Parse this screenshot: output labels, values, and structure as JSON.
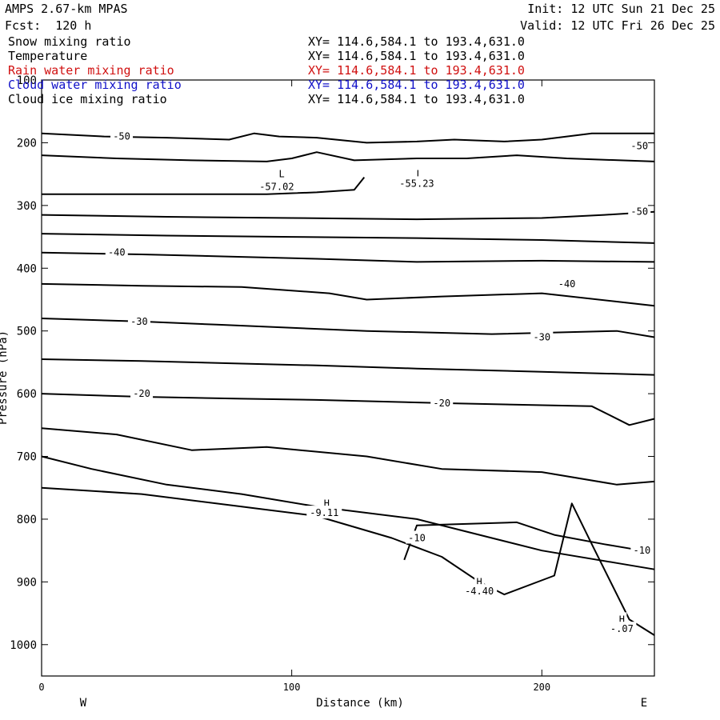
{
  "header": {
    "model": "AMPS 2.67-km MPAS",
    "forecast": "Fcst:  120 h",
    "init": "Init: 12 UTC Sun 21 Dec 25",
    "valid": "Valid: 12 UTC Fri 26 Dec 25"
  },
  "fields": [
    {
      "name": "Snow mixing ratio",
      "xy": "XY= 114.6,584.1 to 193.4,631.0",
      "color": "#000000"
    },
    {
      "name": "Temperature",
      "xy": "XY= 114.6,584.1 to 193.4,631.0",
      "color": "#000000"
    },
    {
      "name": "Rain water mixing ratio",
      "xy": "XY= 114.6,584.1 to 193.4,631.0",
      "color": "#d01010"
    },
    {
      "name": "Cloud water mixing ratio",
      "xy": "XY= 114.6,584.1 to 193.4,631.0",
      "color": "#1010c8"
    },
    {
      "name": "Cloud ice mixing ratio",
      "xy": "XY= 114.6,584.1 to 193.4,631.0",
      "color": "#000000"
    }
  ],
  "chart_data": {
    "type": "line",
    "xlabel": "Distance (km)",
    "ylabel": "Pressure (hPa)",
    "xlim": [
      0,
      245
    ],
    "ylim": [
      100,
      1050
    ],
    "y_inverted": true,
    "x_ticks": [
      0,
      100,
      200
    ],
    "y_ticks": [
      100,
      200,
      300,
      400,
      500,
      600,
      700,
      800,
      900,
      1000
    ],
    "x_ends": {
      "left": "W",
      "right": "E"
    },
    "contour_interval": 5,
    "series": [
      {
        "points": [
          [
            0,
            185
          ],
          [
            25,
            190
          ],
          [
            50,
            192
          ],
          [
            75,
            195
          ],
          [
            85,
            185
          ],
          [
            95,
            190
          ],
          [
            110,
            192
          ],
          [
            130,
            200
          ],
          [
            150,
            198
          ],
          [
            165,
            195
          ],
          [
            185,
            198
          ],
          [
            200,
            195
          ],
          [
            220,
            185
          ],
          [
            245,
            185
          ]
        ]
      },
      {
        "points": [
          [
            0,
            220
          ],
          [
            30,
            225
          ],
          [
            60,
            228
          ],
          [
            90,
            230
          ],
          [
            100,
            225
          ],
          [
            110,
            215
          ],
          [
            125,
            228
          ],
          [
            150,
            225
          ],
          [
            170,
            225
          ],
          [
            190,
            220
          ],
          [
            210,
            225
          ],
          [
            245,
            230
          ]
        ]
      },
      {
        "points": [
          [
            0,
            282
          ],
          [
            30,
            282
          ],
          [
            60,
            282
          ],
          [
            90,
            282
          ],
          [
            110,
            279
          ],
          [
            125,
            275
          ],
          [
            129,
            255
          ]
        ]
      },
      {
        "points": [
          [
            0,
            315
          ],
          [
            50,
            318
          ],
          [
            100,
            320
          ],
          [
            150,
            322
          ],
          [
            200,
            320
          ],
          [
            225,
            315
          ],
          [
            245,
            310
          ]
        ]
      },
      {
        "points": [
          [
            0,
            345
          ],
          [
            50,
            348
          ],
          [
            100,
            350
          ],
          [
            150,
            352
          ],
          [
            200,
            355
          ],
          [
            245,
            360
          ]
        ]
      },
      {
        "points": [
          [
            0,
            375
          ],
          [
            40,
            378
          ],
          [
            80,
            382
          ],
          [
            110,
            385
          ],
          [
            150,
            390
          ],
          [
            200,
            388
          ],
          [
            245,
            390
          ]
        ]
      },
      {
        "points": [
          [
            0,
            425
          ],
          [
            40,
            428
          ],
          [
            80,
            430
          ],
          [
            115,
            440
          ],
          [
            130,
            450
          ],
          [
            160,
            445
          ],
          [
            200,
            440
          ],
          [
            245,
            460
          ]
        ]
      },
      {
        "points": [
          [
            0,
            480
          ],
          [
            40,
            485
          ],
          [
            70,
            490
          ],
          [
            100,
            495
          ],
          [
            130,
            500
          ],
          [
            180,
            505
          ],
          [
            230,
            500
          ],
          [
            245,
            510
          ]
        ]
      },
      {
        "points": [
          [
            0,
            545
          ],
          [
            40,
            548
          ],
          [
            80,
            552
          ],
          [
            110,
            555
          ],
          [
            150,
            560
          ],
          [
            200,
            565
          ],
          [
            245,
            570
          ]
        ]
      },
      {
        "points": [
          [
            0,
            600
          ],
          [
            40,
            605
          ],
          [
            80,
            608
          ],
          [
            110,
            610
          ],
          [
            160,
            615
          ],
          [
            220,
            620
          ],
          [
            235,
            650
          ],
          [
            245,
            640
          ]
        ]
      },
      {
        "points": [
          [
            0,
            655
          ],
          [
            30,
            665
          ],
          [
            60,
            690
          ],
          [
            90,
            685
          ],
          [
            130,
            700
          ],
          [
            160,
            720
          ],
          [
            200,
            725
          ],
          [
            230,
            745
          ],
          [
            245,
            740
          ]
        ]
      },
      {
        "points": [
          [
            0,
            700
          ],
          [
            20,
            720
          ],
          [
            50,
            745
          ],
          [
            80,
            760
          ],
          [
            110,
            780
          ],
          [
            150,
            800
          ],
          [
            180,
            830
          ],
          [
            200,
            850
          ],
          [
            230,
            870
          ],
          [
            245,
            880
          ]
        ]
      },
      {
        "points": [
          [
            0,
            750
          ],
          [
            40,
            760
          ],
          [
            80,
            780
          ],
          [
            110,
            795
          ],
          [
            140,
            830
          ],
          [
            160,
            860
          ],
          [
            175,
            900
          ],
          [
            185,
            920
          ],
          [
            205,
            890
          ],
          [
            212,
            775
          ],
          [
            220,
            840
          ],
          [
            235,
            960
          ],
          [
            245,
            985
          ]
        ]
      },
      {
        "points": [
          [
            145,
            865
          ],
          [
            150,
            810
          ],
          [
            190,
            805
          ],
          [
            205,
            825
          ],
          [
            225,
            840
          ],
          [
            240,
            850
          ]
        ]
      }
    ],
    "annotations": [
      {
        "label": "-50",
        "x": 32,
        "p": 190
      },
      {
        "label": "-50",
        "x": 239,
        "p": 205
      },
      {
        "label": "-50",
        "x": 239,
        "p": 310
      },
      {
        "label": "-40",
        "x": 30,
        "p": 375
      },
      {
        "label": "-40",
        "x": 210,
        "p": 425
      },
      {
        "label": "-30",
        "x": 39,
        "p": 485
      },
      {
        "label": "-30",
        "x": 200,
        "p": 510
      },
      {
        "label": "-20",
        "x": 40,
        "p": 600
      },
      {
        "label": "-20",
        "x": 160,
        "p": 615
      },
      {
        "label": "-10",
        "x": 150,
        "p": 830
      },
      {
        "label": "-10",
        "x": 240,
        "p": 850
      },
      {
        "label": "L",
        "x": 96,
        "p": 250
      },
      {
        "label": "-57.02",
        "x": 94,
        "p": 270
      },
      {
        "label": "L",
        "x": 151,
        "p": 250
      },
      {
        "label": "-55.23",
        "x": 150,
        "p": 265
      },
      {
        "label": "H",
        "x": 114,
        "p": 775
      },
      {
        "label": "-9.11",
        "x": 113,
        "p": 790
      },
      {
        "label": "H",
        "x": 175,
        "p": 900
      },
      {
        "label": "-4.40",
        "x": 175,
        "p": 915
      },
      {
        "label": "H",
        "x": 232,
        "p": 960
      },
      {
        "label": "-.07",
        "x": 232,
        "p": 975
      }
    ]
  }
}
